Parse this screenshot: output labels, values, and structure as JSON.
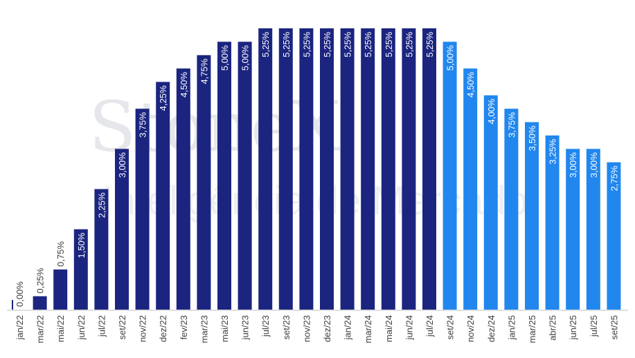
{
  "watermark": {
    "line1": "StoneX",
    "line2": "Inteligência de Mercado"
  },
  "chart_data": {
    "type": "bar",
    "title": "",
    "xlabel": "",
    "ylabel": "",
    "ylim": [
      0,
      5.25
    ],
    "grid": false,
    "legend": "none",
    "colors": {
      "history": "#1b2580",
      "projection": "#2187ee",
      "zero_tick": "#1b2580",
      "axis": "#bfbfbf",
      "label_text": "#404040"
    },
    "categories": [
      "jan/22",
      "mar/22",
      "mai/22",
      "jun/22",
      "jul/22",
      "set/22",
      "nov/22",
      "dez/22",
      "fev/23",
      "mar/23",
      "mai/23",
      "jun/23",
      "jul/23",
      "set/23",
      "nov/23",
      "dez/23",
      "jan/24",
      "mar/24",
      "mai/24",
      "jun/24",
      "jul/24",
      "set/24",
      "nov/24",
      "dez/24",
      "jan/25",
      "mar/25",
      "abr/25",
      "jun/25",
      "jul/25",
      "set/25"
    ],
    "values": [
      0.0,
      0.25,
      0.75,
      1.5,
      2.25,
      3.0,
      3.75,
      4.25,
      4.5,
      4.75,
      5.0,
      5.0,
      5.25,
      5.25,
      5.25,
      5.25,
      5.25,
      5.25,
      5.25,
      5.25,
      5.25,
      5.0,
      4.5,
      4.0,
      3.75,
      3.5,
      3.25,
      3.0,
      3.0,
      2.75
    ],
    "data_labels": [
      "0,00%",
      "0,25%",
      "0,75%",
      "1,50%",
      "2,25%",
      "3,00%",
      "3,75%",
      "4,25%",
      "4,50%",
      "4,75%",
      "5,00%",
      "5,00%",
      "5,25%",
      "5,25%",
      "5,25%",
      "5,25%",
      "5,25%",
      "5,25%",
      "5,25%",
      "5,25%",
      "5,25%",
      "5,00%",
      "4,50%",
      "4,00%",
      "3,75%",
      "3,50%",
      "3,25%",
      "3,00%",
      "3,00%",
      "2,75%"
    ],
    "projection_start_index": 21
  }
}
